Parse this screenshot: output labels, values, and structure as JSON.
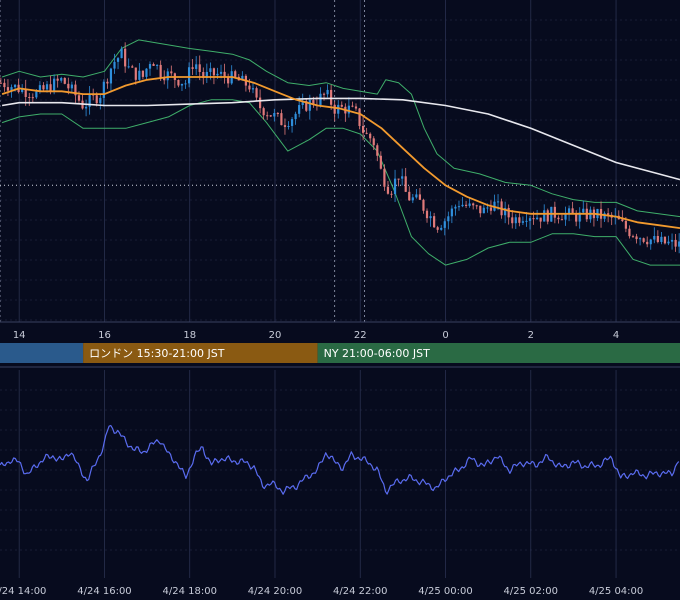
{
  "colors": {
    "background": "#070b1e",
    "grid": "#2a3150",
    "candle_up": "#2f8fdc",
    "candle_down": "#e07a7a",
    "ma_fast": "#f29a2e",
    "ma_slow": "#e8e8ee",
    "bollinger": "#3fae6a",
    "oscillator": "#5a6cf0",
    "session_asia": "#2a5a8c",
    "session_london": "#8a5a12",
    "session_ny": "#2a6a44"
  },
  "sessions": [
    {
      "label": "",
      "from": -0.5,
      "to": 15.5,
      "color_key": "session_asia"
    },
    {
      "label": "ロンドン 15:30-21:00 JST",
      "from": 15.5,
      "to": 21.0,
      "color_key": "session_london"
    },
    {
      "label": "NY 21:00-06:00 JST",
      "from": 21.0,
      "to": 30.5,
      "color_key": "session_ny"
    }
  ],
  "chart_data": [
    {
      "type": "candlestick",
      "title": "",
      "x_ticks": [
        {
          "hour": 14,
          "label": "14"
        },
        {
          "hour": 16,
          "label": "16"
        },
        {
          "hour": 18,
          "label": "18"
        },
        {
          "hour": 20,
          "label": "20"
        },
        {
          "hour": 22,
          "label": "22"
        },
        {
          "hour": 24,
          "label": "0"
        },
        {
          "hour": 26,
          "label": "2"
        },
        {
          "hour": 28,
          "label": "4"
        }
      ],
      "x_range": [
        13.55,
        29.5
      ],
      "y_range": [
        0,
        100
      ],
      "grid": true,
      "reference_lines": {
        "vertical_dashed_hours": [
          13.55,
          21.4,
          22.1
        ],
        "horizontal_dotted_level": 42
      },
      "candles": {
        "start_hour": 13.57,
        "interval_hours": 0.0833,
        "count": 196
      },
      "close_path": [
        [
          13.6,
          78
        ],
        [
          14.0,
          76
        ],
        [
          14.4,
          74
        ],
        [
          15.0,
          79
        ],
        [
          15.3,
          74
        ],
        [
          15.5,
          70
        ],
        [
          15.9,
          74
        ],
        [
          16.2,
          85
        ],
        [
          16.4,
          88
        ],
        [
          16.6,
          82
        ],
        [
          16.9,
          80
        ],
        [
          17.1,
          87
        ],
        [
          17.3,
          82
        ],
        [
          17.6,
          80
        ],
        [
          17.9,
          78
        ],
        [
          18.1,
          86
        ],
        [
          18.3,
          80
        ],
        [
          18.6,
          81
        ],
        [
          18.9,
          80
        ],
        [
          19.1,
          79
        ],
        [
          19.4,
          77
        ],
        [
          19.6,
          70
        ],
        [
          19.9,
          67
        ],
        [
          20.2,
          64
        ],
        [
          20.4,
          66
        ],
        [
          20.7,
          70
        ],
        [
          21.0,
          72
        ],
        [
          21.2,
          74
        ],
        [
          21.4,
          69
        ],
        [
          21.7,
          69
        ],
        [
          21.9,
          67
        ],
        [
          22.1,
          60
        ],
        [
          22.3,
          58
        ],
        [
          22.5,
          46
        ],
        [
          22.7,
          40
        ],
        [
          22.9,
          46
        ],
        [
          23.1,
          38
        ],
        [
          23.4,
          36
        ],
        [
          23.6,
          32
        ],
        [
          23.8,
          28
        ],
        [
          24.0,
          30
        ],
        [
          24.3,
          36
        ],
        [
          24.6,
          34
        ],
        [
          24.9,
          33
        ],
        [
          25.1,
          36
        ],
        [
          25.3,
          33
        ],
        [
          25.6,
          30
        ],
        [
          25.9,
          32
        ],
        [
          26.2,
          31
        ],
        [
          26.5,
          32
        ],
        [
          26.8,
          32
        ],
        [
          27.1,
          31
        ],
        [
          27.4,
          32
        ],
        [
          27.7,
          31
        ],
        [
          28.0,
          30
        ],
        [
          28.3,
          26
        ],
        [
          28.6,
          24
        ],
        [
          29.0,
          22
        ],
        [
          29.5,
          21
        ]
      ],
      "ma_fast_path": [
        [
          13.6,
          74
        ],
        [
          14.0,
          76
        ],
        [
          14.5,
          75
        ],
        [
          15.0,
          75
        ],
        [
          15.5,
          74
        ],
        [
          16.0,
          74
        ],
        [
          16.5,
          77
        ],
        [
          17.0,
          79
        ],
        [
          17.5,
          80
        ],
        [
          18.0,
          80
        ],
        [
          18.5,
          80
        ],
        [
          19.0,
          80
        ],
        [
          19.5,
          78
        ],
        [
          20.0,
          75
        ],
        [
          20.5,
          72
        ],
        [
          21.0,
          70
        ],
        [
          21.5,
          69
        ],
        [
          22.0,
          67
        ],
        [
          22.5,
          62
        ],
        [
          23.0,
          55
        ],
        [
          23.5,
          48
        ],
        [
          24.0,
          42
        ],
        [
          24.5,
          38
        ],
        [
          25.0,
          35
        ],
        [
          25.5,
          33
        ],
        [
          26.0,
          32
        ],
        [
          26.5,
          32
        ],
        [
          27.0,
          32
        ],
        [
          27.5,
          32
        ],
        [
          28.0,
          31
        ],
        [
          28.5,
          29
        ],
        [
          29.0,
          28
        ],
        [
          29.5,
          27
        ]
      ],
      "ma_slow_path": [
        [
          13.6,
          70
        ],
        [
          14.0,
          71
        ],
        [
          14.5,
          71
        ],
        [
          15.0,
          71
        ],
        [
          15.5,
          70.5
        ],
        [
          16.0,
          70
        ],
        [
          17.0,
          70
        ],
        [
          18.0,
          70.5
        ],
        [
          19.0,
          71
        ],
        [
          20.0,
          72
        ],
        [
          21.0,
          72.5
        ],
        [
          22.0,
          72.5
        ],
        [
          23.0,
          72
        ],
        [
          24.0,
          70
        ],
        [
          25.0,
          67
        ],
        [
          26.0,
          62
        ],
        [
          27.0,
          56
        ],
        [
          28.0,
          50
        ],
        [
          29.0,
          46
        ],
        [
          29.5,
          44
        ]
      ],
      "bb_upper_path": [
        [
          13.6,
          80
        ],
        [
          14.0,
          82
        ],
        [
          14.5,
          80
        ],
        [
          15.0,
          81
        ],
        [
          15.5,
          80
        ],
        [
          16.0,
          82
        ],
        [
          16.4,
          90
        ],
        [
          16.8,
          93
        ],
        [
          17.2,
          92
        ],
        [
          17.6,
          91
        ],
        [
          18.0,
          90
        ],
        [
          18.5,
          89
        ],
        [
          19.0,
          88
        ],
        [
          19.4,
          86
        ],
        [
          19.8,
          82
        ],
        [
          20.3,
          78
        ],
        [
          20.8,
          77
        ],
        [
          21.2,
          78
        ],
        [
          21.6,
          76
        ],
        [
          22.0,
          75
        ],
        [
          22.4,
          74
        ],
        [
          22.6,
          79
        ],
        [
          22.9,
          78
        ],
        [
          23.2,
          74
        ],
        [
          23.5,
          62
        ],
        [
          23.8,
          53
        ],
        [
          24.2,
          48
        ],
        [
          24.8,
          46
        ],
        [
          25.4,
          43
        ],
        [
          26.0,
          42
        ],
        [
          26.5,
          39
        ],
        [
          27.0,
          37
        ],
        [
          27.5,
          36
        ],
        [
          28.0,
          36
        ],
        [
          28.5,
          33
        ],
        [
          29.0,
          32
        ],
        [
          29.5,
          31
        ]
      ],
      "bb_lower_path": [
        [
          13.6,
          64
        ],
        [
          14.0,
          66
        ],
        [
          14.5,
          67
        ],
        [
          15.0,
          67
        ],
        [
          15.5,
          62
        ],
        [
          16.0,
          62
        ],
        [
          16.5,
          62
        ],
        [
          17.0,
          64
        ],
        [
          17.5,
          66
        ],
        [
          18.0,
          70
        ],
        [
          18.5,
          72
        ],
        [
          19.0,
          72
        ],
        [
          19.4,
          71
        ],
        [
          19.8,
          64
        ],
        [
          20.3,
          54
        ],
        [
          20.8,
          58
        ],
        [
          21.2,
          62
        ],
        [
          21.6,
          62
        ],
        [
          22.0,
          60
        ],
        [
          22.4,
          54
        ],
        [
          22.8,
          40
        ],
        [
          23.2,
          24
        ],
        [
          23.6,
          18
        ],
        [
          24.0,
          14
        ],
        [
          24.5,
          16
        ],
        [
          25.0,
          20
        ],
        [
          25.5,
          22
        ],
        [
          26.0,
          22
        ],
        [
          26.5,
          25
        ],
        [
          27.0,
          25
        ],
        [
          27.5,
          24
        ],
        [
          28.0,
          24
        ],
        [
          28.4,
          16
        ],
        [
          28.8,
          14
        ],
        [
          29.2,
          14
        ],
        [
          29.5,
          14
        ]
      ]
    },
    {
      "type": "line",
      "title": "",
      "x_ticks": [
        {
          "hour": 14,
          "label": "4/24 14:00"
        },
        {
          "hour": 16,
          "label": "4/24 16:00"
        },
        {
          "hour": 18,
          "label": "4/24 18:00"
        },
        {
          "hour": 20,
          "label": "4/24 20:00"
        },
        {
          "hour": 22,
          "label": "4/24 22:00"
        },
        {
          "hour": 24,
          "label": "4/25 00:00"
        },
        {
          "hour": 26,
          "label": "4/25 02:00"
        },
        {
          "hour": 28,
          "label": "4/25 04:00"
        }
      ],
      "x_range": [
        13.55,
        29.5
      ],
      "y_range": [
        0,
        100
      ],
      "grid": true,
      "path": [
        [
          13.55,
          48
        ],
        [
          13.8,
          54
        ],
        [
          14.0,
          52
        ],
        [
          14.2,
          42
        ],
        [
          14.4,
          50
        ],
        [
          14.6,
          55
        ],
        [
          14.8,
          57
        ],
        [
          15.0,
          53
        ],
        [
          15.2,
          61
        ],
        [
          15.4,
          48
        ],
        [
          15.6,
          38
        ],
        [
          15.8,
          52
        ],
        [
          16.0,
          66
        ],
        [
          16.1,
          80
        ],
        [
          16.3,
          76
        ],
        [
          16.5,
          68
        ],
        [
          16.7,
          62
        ],
        [
          16.9,
          60
        ],
        [
          17.1,
          65
        ],
        [
          17.3,
          70
        ],
        [
          17.5,
          58
        ],
        [
          17.7,
          52
        ],
        [
          17.9,
          40
        ],
        [
          18.1,
          56
        ],
        [
          18.3,
          64
        ],
        [
          18.5,
          50
        ],
        [
          18.7,
          55
        ],
        [
          18.9,
          54
        ],
        [
          19.1,
          53
        ],
        [
          19.3,
          52
        ],
        [
          19.5,
          49
        ],
        [
          19.7,
          34
        ],
        [
          19.9,
          36
        ],
        [
          20.2,
          30
        ],
        [
          20.5,
          34
        ],
        [
          20.8,
          42
        ],
        [
          21.0,
          46
        ],
        [
          21.2,
          60
        ],
        [
          21.4,
          52
        ],
        [
          21.6,
          48
        ],
        [
          21.8,
          58
        ],
        [
          22.0,
          55
        ],
        [
          22.2,
          52
        ],
        [
          22.4,
          46
        ],
        [
          22.6,
          30
        ],
        [
          22.9,
          38
        ],
        [
          23.2,
          40
        ],
        [
          23.5,
          36
        ],
        [
          23.8,
          32
        ],
        [
          24.0,
          40
        ],
        [
          24.3,
          46
        ],
        [
          24.6,
          55
        ],
        [
          24.9,
          49
        ],
        [
          25.2,
          57
        ],
        [
          25.5,
          46
        ],
        [
          25.8,
          52
        ],
        [
          26.1,
          50
        ],
        [
          26.4,
          56
        ],
        [
          26.7,
          48
        ],
        [
          27.0,
          52
        ],
        [
          27.3,
          49
        ],
        [
          27.6,
          50
        ],
        [
          27.9,
          56
        ],
        [
          28.1,
          40
        ],
        [
          28.4,
          44
        ],
        [
          28.7,
          42
        ],
        [
          29.0,
          44
        ],
        [
          29.3,
          43
        ],
        [
          29.5,
          56
        ]
      ]
    }
  ]
}
